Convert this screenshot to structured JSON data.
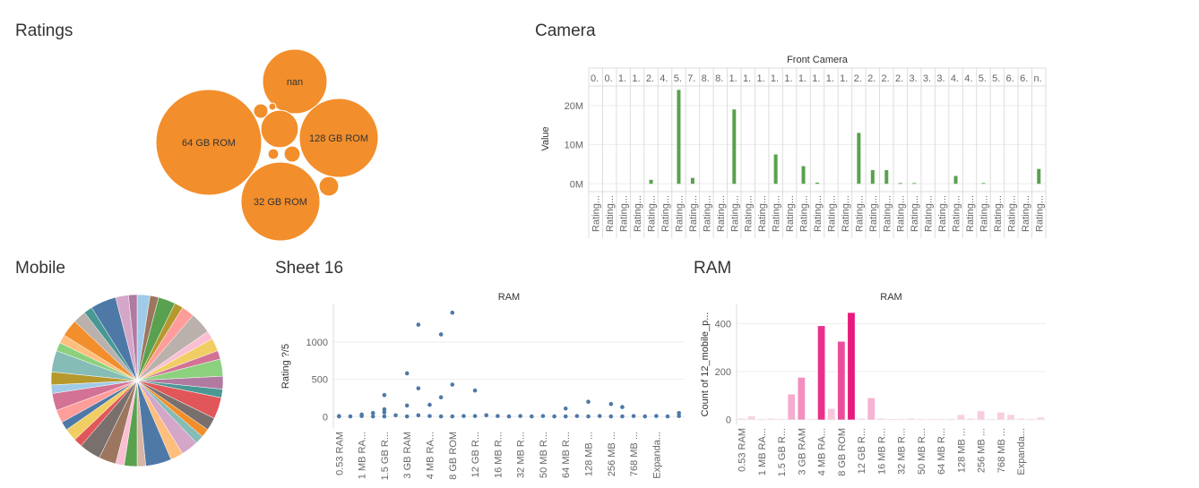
{
  "chart_data": [
    {
      "type": "bubble",
      "title": "Ratings",
      "categories": [
        "64 GB ROM",
        "128 GB ROM",
        "32 GB ROM",
        "nan",
        null,
        null,
        null,
        null,
        null,
        null
      ],
      "values": [
        3500,
        1950,
        1950,
        1300,
        440,
        120,
        65,
        80,
        35,
        16
      ],
      "color": "#f28e2b"
    },
    {
      "type": "bar",
      "title": "Camera",
      "header": "Front Camera",
      "ylabel": "Value",
      "categories": [
        "0.",
        "0.",
        "1.",
        "1.",
        "2.",
        "4.",
        "5.",
        "7.",
        "8.",
        "8.",
        "1.",
        "1.",
        "1.",
        "1.",
        "1.",
        "1.",
        "1.",
        "1.",
        "1.",
        "2.",
        "2.",
        "2.",
        "2.",
        "3.",
        "3.",
        "3.",
        "4.",
        "4.",
        "5.",
        "5.",
        "6.",
        "6.",
        "n."
      ],
      "row_labels": [
        "Rating...",
        "Rating...",
        "Rating...",
        "Rating...",
        "Rating...",
        "Rating...",
        "Rating...",
        "Rating...",
        "Rating...",
        "Rating...",
        "Rating...",
        "Rating...",
        "Rating...",
        "Rating...",
        "Rating...",
        "Rating...",
        "Rating...",
        "Rating...",
        "Rating...",
        "Rating...",
        "Rating...",
        "Rating...",
        "Rating...",
        "Rating...",
        "Rating...",
        "Rating...",
        "Rating...",
        "Rating...",
        "Rating...",
        "Rating...",
        "Rating...",
        "Rating...",
        "Rating..."
      ],
      "values": [
        null,
        null,
        null,
        null,
        1000000,
        null,
        24000000,
        1500000,
        null,
        null,
        19000000,
        null,
        null,
        7500000,
        null,
        4500000,
        300000,
        null,
        null,
        13000000,
        3500000,
        3500000,
        200000,
        200000,
        null,
        null,
        2000000,
        null,
        200000,
        null,
        null,
        null,
        3800000
      ],
      "color": "#59a14f",
      "ylim": [
        -2000000,
        25000000
      ],
      "yticks": [
        {
          "value": 0,
          "label": "0M"
        },
        {
          "value": 10000000,
          "label": "10M"
        },
        {
          "value": 20000000,
          "label": "20M"
        }
      ],
      "grid": true
    },
    {
      "type": "pie",
      "title": "Mobile",
      "values": [
        3,
        2,
        4,
        2,
        3,
        5,
        2,
        3,
        2,
        4,
        3,
        2,
        5,
        3,
        2,
        2,
        4,
        3,
        6,
        2,
        3,
        2,
        4,
        5,
        2,
        3,
        2,
        3,
        4,
        2,
        3,
        5,
        2,
        2,
        4,
        3,
        2,
        6,
        3,
        2
      ],
      "colors": [
        "#a0cbe8",
        "#9d7660",
        "#59a14f",
        "#b6992d",
        "#ff9d9a",
        "#bab0ac",
        "#fabfd2",
        "#f1ce63",
        "#d37295",
        "#8cd17d",
        "#b07aa1",
        "#499894",
        "#e15759",
        "#79706e",
        "#f28e2b",
        "#86bcb6",
        "#d4a6c8",
        "#ffbe7d",
        "#4e79a7",
        "#d7b5a6",
        "#59a14f",
        "#fabfd2",
        "#9d7660",
        "#79706e",
        "#e15759",
        "#f1ce63",
        "#4e79a7",
        "#ff9d9a",
        "#d37295",
        "#a0cbe8",
        "#b6992d",
        "#86bcb6",
        "#8cd17d",
        "#ffbe7d",
        "#f28e2b",
        "#bab0ac",
        "#499894",
        "#4e79a7",
        "#d4a6c8",
        "#b07aa1"
      ]
    },
    {
      "type": "strip",
      "title": "Sheet 16",
      "header": "RAM",
      "ylabel": "Rating ?/5",
      "categories": [
        "0.53 RAM",
        null,
        "1 MB RA...",
        null,
        "1.5 GB R...",
        null,
        "3 GB RAM",
        null,
        "4 MB RA...",
        null,
        "8 GB ROM",
        null,
        "12 GB R...",
        null,
        "16 MB R...",
        null,
        "32 MB R...",
        null,
        "50 MB R...",
        null,
        "64 MB R...",
        null,
        "128 MB ...",
        null,
        "256 MB ...",
        null,
        "768 MB ...",
        null,
        "Expanda...",
        null,
        null
      ],
      "values": [
        [
          10,
          5
        ],
        [
          5
        ],
        [
          30,
          10
        ],
        [
          50,
          5
        ],
        [
          290,
          100,
          60,
          5
        ],
        [
          20
        ],
        [
          580,
          150,
          5
        ],
        [
          1230,
          380,
          20
        ],
        [
          160,
          10
        ],
        [
          1100,
          260,
          5
        ],
        [
          1390,
          430,
          5
        ],
        [
          10
        ],
        [
          350,
          10
        ],
        [
          20
        ],
        [
          10
        ],
        [
          5
        ],
        [
          10
        ],
        [
          5
        ],
        [
          10
        ],
        [
          5
        ],
        [
          110,
          5
        ],
        [
          10
        ],
        [
          200,
          5
        ],
        [
          10
        ],
        [
          170,
          5
        ],
        [
          130,
          5
        ],
        [
          10
        ],
        [
          5
        ],
        [
          10
        ],
        [
          5
        ],
        [
          50,
          10
        ]
      ],
      "color": "#4e79a7",
      "ylim": [
        -150,
        1500
      ],
      "yticks": [
        0,
        500,
        1000
      ],
      "grid": true
    },
    {
      "type": "bar",
      "title": "RAM",
      "header": "RAM",
      "ylabel": "Count of 12_mobile_p...",
      "categories": [
        "0.53 RAM",
        null,
        "1 MB RA...",
        null,
        "1.5 GB R...",
        null,
        "3 GB RAM",
        null,
        "4 MB RA...",
        null,
        "8 GB ROM",
        null,
        "12 GB R...",
        null,
        "16 MB R...",
        null,
        "32 MB R...",
        null,
        "50 MB R...",
        null,
        "64 MB R...",
        null,
        "128 MB ...",
        null,
        "256 MB ...",
        null,
        "768 MB ...",
        null,
        "Expanda...",
        null,
        null
      ],
      "values": [
        5,
        15,
        3,
        5,
        3,
        105,
        175,
        3,
        390,
        45,
        325,
        445,
        5,
        90,
        5,
        3,
        3,
        5,
        3,
        3,
        3,
        3,
        20,
        5,
        35,
        3,
        30,
        20,
        5,
        3,
        10
      ],
      "color_range": [
        "#f8dbe8",
        "#e8197d"
      ],
      "ylim": [
        -20,
        480
      ],
      "yticks": [
        0,
        200,
        400
      ],
      "grid": true
    }
  ]
}
